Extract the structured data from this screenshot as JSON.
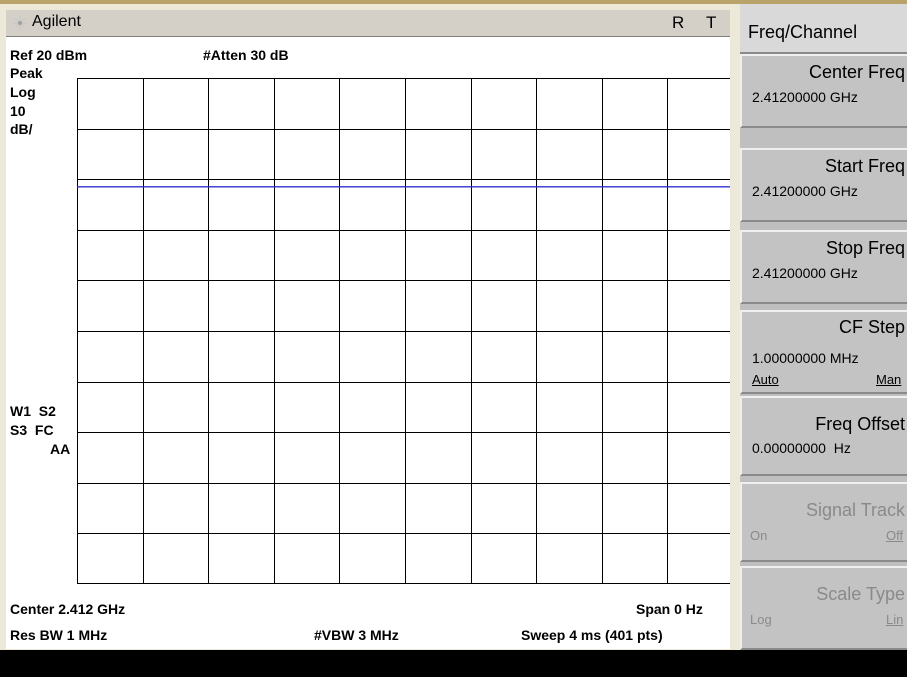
{
  "titlebar": {
    "brand": "Agilent",
    "status_r": "R",
    "status_t": "T"
  },
  "display": {
    "ref_level": "Ref 20 dBm",
    "attenuation": "#Atten 30 dB",
    "detector": "Peak",
    "scale_type": "Log",
    "scale_value": "10",
    "scale_unit": "dB/",
    "trace_flags_1": "W1  S2",
    "trace_flags_2": "S3  FC",
    "trace_flags_3": "AA",
    "center": "Center 2.412 GHz",
    "span": "Span 0 Hz",
    "res_bw": "Res BW 1 MHz",
    "vbw": "#VBW 3 MHz",
    "sweep": "Sweep 4 ms (401 pts)"
  },
  "softkeys": {
    "menu_title": "Freq/Channel",
    "center_freq": {
      "label": "Center Freq",
      "value": "2.41200000 GHz"
    },
    "start_freq": {
      "label": "Start Freq",
      "value": "2.41200000 GHz"
    },
    "stop_freq": {
      "label": "Stop Freq",
      "value": "2.41200000 GHz"
    },
    "cf_step": {
      "label": "CF Step",
      "value": "1.00000000 MHz",
      "opt_left": "Auto",
      "opt_right": "Man"
    },
    "freq_offset": {
      "label": "Freq Offset",
      "value": "0.00000000  Hz"
    },
    "signal_track": {
      "label": "Signal Track",
      "opt_left": "On",
      "opt_right": "Off"
    },
    "scale_type": {
      "label": "Scale Type",
      "opt_left": "Log",
      "opt_right": "Lin"
    }
  },
  "chart_data": {
    "type": "line",
    "grid": true,
    "divisions_x": 10,
    "divisions_y": 10,
    "ylim": [
      -80,
      20
    ],
    "trace_color": "#3030d0",
    "series": [
      {
        "y": -1.5
      }
    ]
  }
}
